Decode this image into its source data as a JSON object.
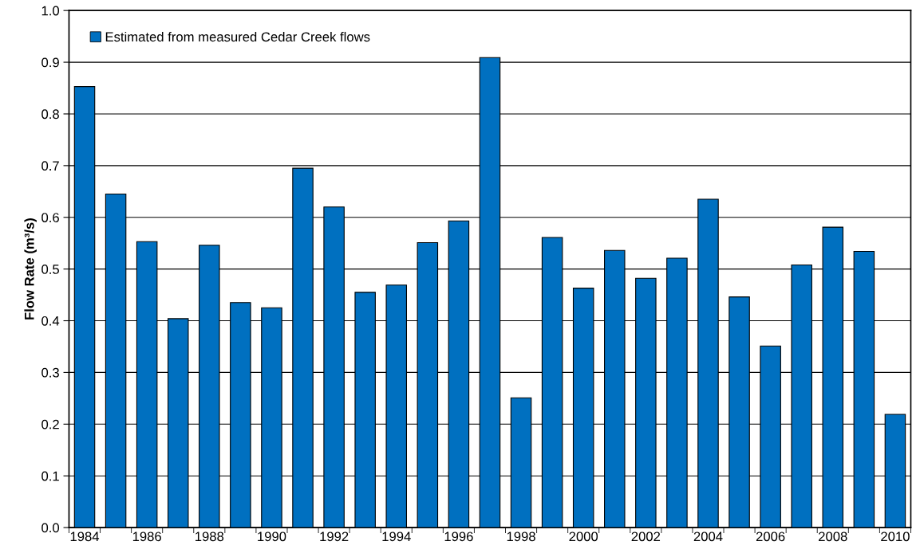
{
  "chart_data": {
    "type": "bar",
    "ylabel": "Flow Rate (m³/s)",
    "categories": [
      "1984",
      null,
      "1986",
      null,
      "1988",
      null,
      "1990",
      null,
      "1992",
      null,
      "1994",
      null,
      "1996",
      null,
      "1998",
      null,
      "2000",
      null,
      "2002",
      null,
      "2004",
      null,
      "2006",
      null,
      "2008",
      null,
      "2010"
    ],
    "series": [
      {
        "name": "Estimated from measured Cedar Creek flows",
        "color": "#0070c0",
        "values": [
          0.853,
          0.645,
          0.553,
          0.404,
          0.546,
          0.435,
          0.425,
          0.695,
          0.62,
          0.455,
          0.469,
          0.551,
          0.593,
          0.909,
          0.251,
          0.561,
          0.463,
          0.536,
          0.482,
          0.521,
          0.635,
          0.446,
          0.351,
          0.508,
          0.581,
          0.534,
          0.219
        ]
      }
    ],
    "ylim": [
      0,
      1
    ],
    "yticks": [
      {
        "value": 0,
        "label": "0.0"
      },
      {
        "value": 0.1,
        "label": "0.1"
      },
      {
        "value": 0.2,
        "label": "0.2"
      },
      {
        "value": 0.3,
        "label": "0.3"
      },
      {
        "value": 0.4,
        "label": "0.4"
      },
      {
        "value": 0.5,
        "label": "0.5"
      },
      {
        "value": 0.6,
        "label": "0.6"
      },
      {
        "value": 0.7,
        "label": "0.7"
      },
      {
        "value": 0.8,
        "label": "0.8"
      },
      {
        "value": 0.9,
        "label": "0.9"
      },
      {
        "value": 1,
        "label": "1.0"
      }
    ],
    "grid": "y",
    "legend": "top left"
  }
}
